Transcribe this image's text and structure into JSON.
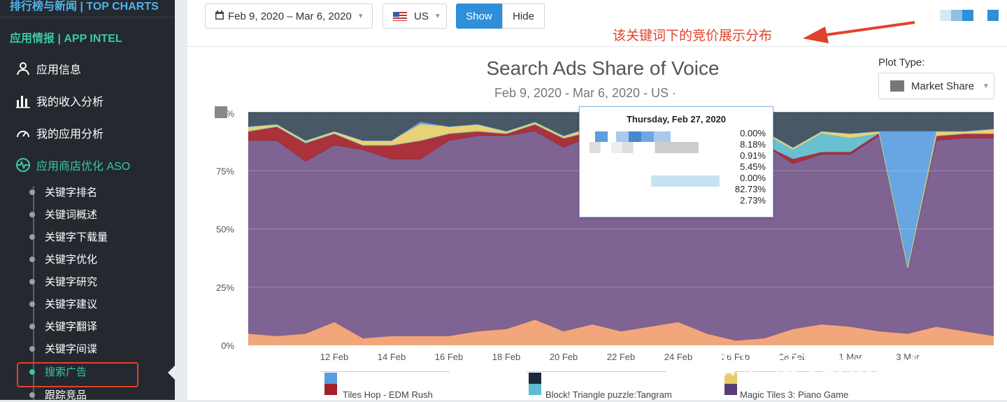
{
  "sidebar": {
    "top": "排行榜与新闻 | TOP CHARTS",
    "section": "应用情报 | APP INTEL",
    "items": [
      {
        "label": "应用信息"
      },
      {
        "label": "我的收入分析"
      },
      {
        "label": "我的应用分析"
      },
      {
        "label": "应用商店优化 ASO"
      }
    ],
    "sub_items": [
      {
        "label": "关键字排名"
      },
      {
        "label": "关键词概述"
      },
      {
        "label": "关键字下载量"
      },
      {
        "label": "关键字优化"
      },
      {
        "label": "关键字研究"
      },
      {
        "label": "关键字建议"
      },
      {
        "label": "关键字翻译"
      },
      {
        "label": "关键字间谍"
      },
      {
        "label": "搜索广告"
      },
      {
        "label": "跟踪竞品"
      }
    ]
  },
  "toolbar": {
    "date_range": "Feb 9, 2020 – Mar 6, 2020",
    "country": "US",
    "show_label": "Show",
    "hide_label": "Hide"
  },
  "annotation": "该关键词下的竞价展示分布",
  "chart_header": {
    "title": "Search Ads Share of Voice",
    "subtitle": "Feb 9, 2020 - Mar 6, 2020 - US ·",
    "plot_type_label": "Plot Type:",
    "plot_type_value": "Market Share"
  },
  "tooltip": {
    "title": "Thursday, Feb 27, 2020",
    "values": [
      "0.00%",
      "8.18%",
      "0.91%",
      "5.45%",
      "0.00%",
      "82.73%",
      "2.73%"
    ]
  },
  "legend": {
    "item1": "Tiles Hop - EDM Rush",
    "item2": "Block! Triangle puzzle:Tangram",
    "item3": "Magic Tiles 3: Piano Game"
  },
  "watermark": "知乎 @Vermouthstx",
  "colors": {
    "purple": "#74568a",
    "orange": "#f0a070",
    "red": "#a4202a",
    "yellow": "#e7cd6a",
    "teal": "#5bbccf",
    "blue": "#5a9ee0",
    "dark": "#3a4a5a"
  },
  "chart_data": {
    "type": "area",
    "title": "Search Ads Share of Voice",
    "subtitle": "Feb 9, 2020 - Mar 6, 2020 - US",
    "y_ticks": [
      "0%",
      "25%",
      "50%",
      "75%",
      "%"
    ],
    "ylim": [
      0,
      100
    ],
    "x_ticks": [
      "12 Feb",
      "14 Feb",
      "16 Feb",
      "18 Feb",
      "20 Feb",
      "22 Feb",
      "24 Feb",
      "26 Feb",
      "28 Feb",
      "1 Mar",
      "3 Mar"
    ],
    "x": [
      "Feb 9",
      "Feb 10",
      "Feb 11",
      "Feb 12",
      "Feb 13",
      "Feb 14",
      "Feb 15",
      "Feb 16",
      "Feb 17",
      "Feb 18",
      "Feb 19",
      "Feb 20",
      "Feb 21",
      "Feb 22",
      "Feb 23",
      "Feb 24",
      "Feb 25",
      "Feb 26",
      "Feb 27",
      "Feb 28",
      "Feb 29",
      "Mar 1",
      "Mar 2",
      "Mar 3",
      "Mar 4",
      "Mar 5",
      "Mar 6"
    ],
    "series": [
      {
        "color": "#f0a070",
        "values": [
          5,
          4,
          5,
          10,
          3,
          4,
          4,
          4,
          6,
          7,
          11,
          6,
          9,
          6,
          8,
          10,
          5,
          2,
          3,
          7,
          9,
          8,
          6,
          5,
          8,
          6,
          4
        ]
      },
      {
        "color": "#74568a",
        "values": [
          83,
          84,
          74,
          76,
          81,
          76,
          76,
          84,
          84,
          83,
          81,
          79,
          81,
          80,
          78,
          76,
          82,
          86,
          83,
          71,
          73,
          74,
          84,
          27,
          80,
          83,
          85
        ]
      },
      {
        "color": "#a4202a",
        "values": [
          4,
          6,
          8,
          5,
          2,
          6,
          8,
          3,
          2,
          1,
          3,
          4,
          2,
          3,
          3,
          5,
          2,
          2,
          0,
          2,
          1,
          1,
          1,
          1,
          2,
          2,
          2
        ]
      },
      {
        "color": "#5bbccf",
        "values": [
          0,
          0,
          0,
          0,
          0,
          0,
          0,
          0,
          0,
          0,
          0,
          0,
          0,
          0,
          0,
          0,
          0,
          0,
          5,
          4,
          8,
          6,
          0,
          0,
          0,
          0,
          0
        ]
      },
      {
        "color": "#e7cd6a",
        "values": [
          2,
          1,
          1,
          1,
          2,
          2,
          7,
          3,
          3,
          1,
          1,
          1,
          2,
          2,
          2,
          1,
          2,
          1,
          1,
          1,
          1,
          2,
          1,
          1,
          2,
          1,
          2
        ]
      },
      {
        "color": "#5a9ee0",
        "values": [
          0,
          0,
          0,
          0,
          0,
          0,
          1,
          0,
          0,
          0,
          0,
          0,
          0,
          0,
          0,
          0,
          0,
          0,
          0,
          0,
          0,
          0,
          0,
          58,
          0,
          0,
          0
        ]
      },
      {
        "color": "#3a4a5a",
        "values": [
          6,
          5,
          12,
          8,
          12,
          12,
          4,
          6,
          5,
          8,
          4,
          10,
          6,
          9,
          9,
          8,
          9,
          9,
          8,
          15,
          8,
          9,
          8,
          8,
          8,
          8,
          7
        ]
      }
    ]
  }
}
